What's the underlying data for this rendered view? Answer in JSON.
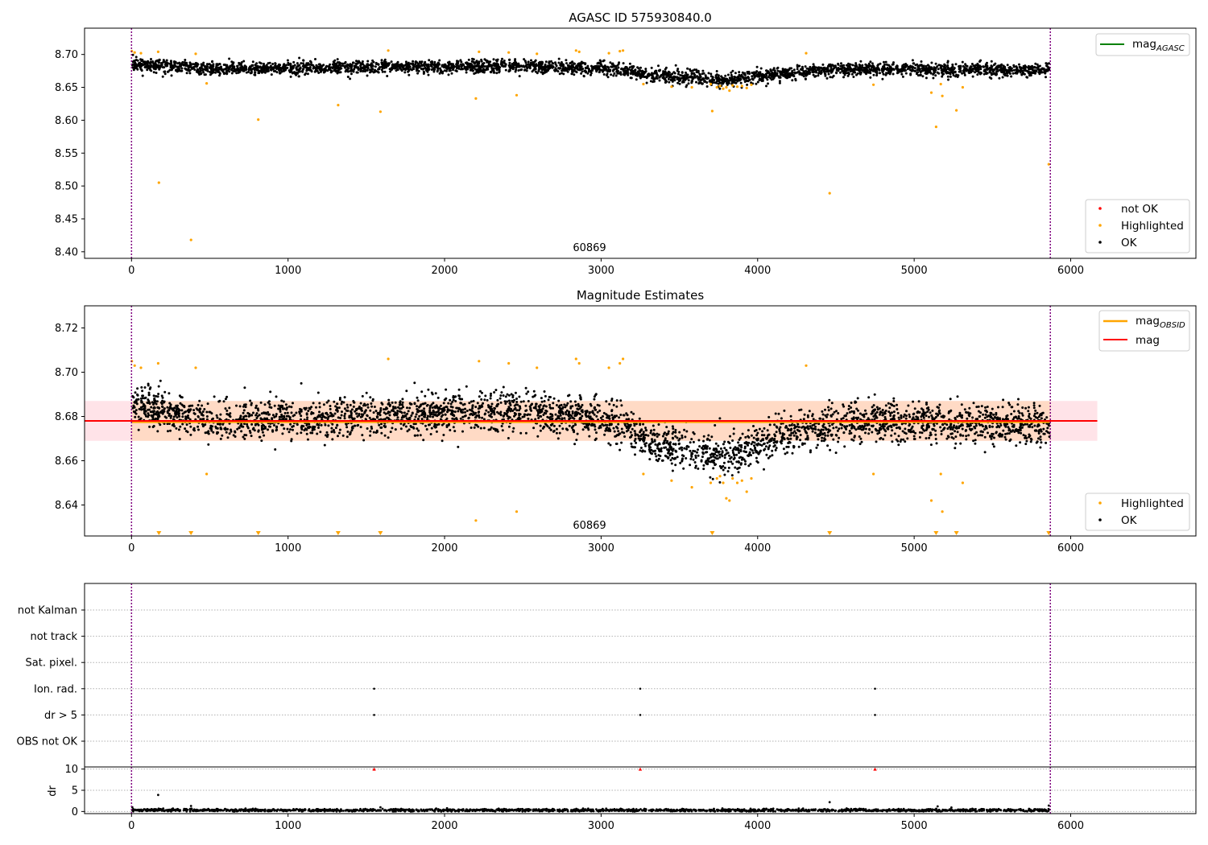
{
  "figure": {
    "panels": [
      {
        "id": "top",
        "title": "AGASC ID 575930840.0",
        "obs_label": "60869"
      },
      {
        "id": "middle",
        "title": "Magnitude Estimates",
        "obs_label": "60869"
      },
      {
        "id": "bottom",
        "title": ""
      }
    ],
    "legends": {
      "top_right": [
        {
          "label": "mag",
          "sub": "AGASC",
          "color": "#008000"
        }
      ],
      "top_markers": [
        {
          "label": "not OK",
          "color": "#ff0000"
        },
        {
          "label": "Highlighted",
          "color": "#ffa500"
        },
        {
          "label": "OK",
          "color": "#000000"
        }
      ],
      "middle_lines": [
        {
          "label": "mag",
          "sub": "OBSID",
          "color": "#ffa500"
        },
        {
          "label": "mag",
          "sub": "",
          "color": "#ff0000"
        }
      ],
      "middle_markers": [
        {
          "label": "Highlighted",
          "color": "#ffa500"
        },
        {
          "label": "OK",
          "color": "#000000"
        }
      ]
    }
  },
  "chart_data": [
    {
      "type": "scatter",
      "title": "AGASC ID 575930840.0",
      "xlabel": "",
      "ylabel": "",
      "xlim": [
        -300,
        6800
      ],
      "ylim": [
        8.39,
        8.74
      ],
      "xticks": [
        0,
        1000,
        2000,
        3000,
        4000,
        5000,
        6000
      ],
      "yticks": [
        8.4,
        8.45,
        8.5,
        8.55,
        8.6,
        8.65,
        8.7
      ],
      "ytick_labels": [
        "8.40",
        "8.45",
        "8.50",
        "8.55",
        "8.60",
        "8.65",
        "8.70"
      ],
      "vlines": [
        0,
        5870
      ],
      "annotation": "60869",
      "legend": [
        "mag_AGASC",
        "not OK",
        "Highlighted",
        "OK"
      ],
      "series": [
        {
          "name": "OK",
          "color": "#000000",
          "trend": [
            [
              0,
              8.686
            ],
            [
              500,
              8.678
            ],
            [
              1500,
              8.68
            ],
            [
              2500,
              8.682
            ],
            [
              3100,
              8.678
            ],
            [
              3300,
              8.668
            ],
            [
              3800,
              8.662
            ],
            [
              4200,
              8.672
            ],
            [
              4600,
              8.678
            ],
            [
              5870,
              8.676
            ]
          ],
          "spread": 0.009
        },
        {
          "name": "Highlighted",
          "color": "#ffa500",
          "points": [
            [
              2,
              8.705
            ],
            [
              20,
              8.703
            ],
            [
              60,
              8.702
            ],
            [
              170,
              8.704
            ],
            [
              175,
              8.505
            ],
            [
              380,
              8.418
            ],
            [
              410,
              8.701
            ],
            [
              480,
              8.656
            ],
            [
              810,
              8.601
            ],
            [
              1320,
              8.623
            ],
            [
              1590,
              8.613
            ],
            [
              1640,
              8.706
            ],
            [
              2200,
              8.633
            ],
            [
              2220,
              8.704
            ],
            [
              2410,
              8.703
            ],
            [
              2460,
              8.638
            ],
            [
              2590,
              8.701
            ],
            [
              2840,
              8.706
            ],
            [
              2860,
              8.704
            ],
            [
              3050,
              8.702
            ],
            [
              3120,
              8.705
            ],
            [
              3140,
              8.706
            ],
            [
              3270,
              8.655
            ],
            [
              3450,
              8.651
            ],
            [
              3580,
              8.65
            ],
            [
              3700,
              8.655
            ],
            [
              3710,
              8.614
            ],
            [
              3740,
              8.65
            ],
            [
              3760,
              8.652
            ],
            [
              3780,
              8.648
            ],
            [
              3800,
              8.65
            ],
            [
              3820,
              8.645
            ],
            [
              3840,
              8.653
            ],
            [
              3870,
              8.651
            ],
            [
              3900,
              8.652
            ],
            [
              3930,
              8.649
            ],
            [
              3960,
              8.654
            ],
            [
              4310,
              8.702
            ],
            [
              4460,
              8.489
            ],
            [
              4740,
              8.654
            ],
            [
              5110,
              8.642
            ],
            [
              5140,
              8.59
            ],
            [
              5170,
              8.655
            ],
            [
              5180,
              8.637
            ],
            [
              5270,
              8.615
            ],
            [
              5310,
              8.65
            ],
            [
              5860,
              8.533
            ]
          ]
        }
      ]
    },
    {
      "type": "scatter",
      "title": "Magnitude Estimates",
      "xlabel": "",
      "ylabel": "",
      "xlim": [
        -300,
        6800
      ],
      "ylim": [
        8.626,
        8.73
      ],
      "xticks": [
        0,
        1000,
        2000,
        3000,
        4000,
        5000,
        6000
      ],
      "yticks": [
        8.64,
        8.66,
        8.68,
        8.7,
        8.72
      ],
      "ytick_labels": [
        "8.64",
        "8.66",
        "8.68",
        "8.70",
        "8.72"
      ],
      "vlines": [
        0,
        5870
      ],
      "annotation": "60869",
      "legend": [
        "mag_OBSID",
        "mag",
        "Highlighted",
        "OK"
      ],
      "mag_line": {
        "y": 8.678,
        "x": [
          -300,
          6170
        ],
        "color": "#ff0000"
      },
      "mag_band": {
        "y": [
          8.669,
          8.687
        ],
        "x": [
          -300,
          6170
        ],
        "color": "#ffc0cb"
      },
      "obsid_line": {
        "y": 8.6775,
        "x": [
          0,
          5870
        ],
        "color": "#ffa500"
      },
      "obsid_band": {
        "y": [
          8.669,
          8.687
        ],
        "x": [
          0,
          5870
        ],
        "color": "#ffa500"
      },
      "series": [
        {
          "name": "OK",
          "color": "#000000",
          "trend": [
            [
              0,
              8.686
            ],
            [
              500,
              8.678
            ],
            [
              1500,
              8.68
            ],
            [
              2500,
              8.682
            ],
            [
              3100,
              8.678
            ],
            [
              3300,
              8.668
            ],
            [
              3800,
              8.662
            ],
            [
              4200,
              8.672
            ],
            [
              4600,
              8.678
            ],
            [
              5870,
              8.676
            ]
          ],
          "spread": 0.008
        },
        {
          "name": "Highlighted",
          "color": "#ffa500",
          "points": [
            [
              2,
              8.705
            ],
            [
              20,
              8.703
            ],
            [
              60,
              8.702
            ],
            [
              170,
              8.704
            ],
            [
              410,
              8.702
            ],
            [
              480,
              8.654
            ],
            [
              1640,
              8.706
            ],
            [
              2200,
              8.633
            ],
            [
              2220,
              8.705
            ],
            [
              2410,
              8.704
            ],
            [
              2460,
              8.637
            ],
            [
              2590,
              8.702
            ],
            [
              2840,
              8.706
            ],
            [
              2860,
              8.704
            ],
            [
              3050,
              8.702
            ],
            [
              3120,
              8.704
            ],
            [
              3140,
              8.706
            ],
            [
              3270,
              8.654
            ],
            [
              3450,
              8.651
            ],
            [
              3580,
              8.648
            ],
            [
              3700,
              8.65
            ],
            [
              3740,
              8.652
            ],
            [
              3760,
              8.653
            ],
            [
              3780,
              8.65
            ],
            [
              3800,
              8.643
            ],
            [
              3820,
              8.642
            ],
            [
              3840,
              8.652
            ],
            [
              3870,
              8.65
            ],
            [
              3900,
              8.651
            ],
            [
              3930,
              8.646
            ],
            [
              3960,
              8.652
            ],
            [
              4310,
              8.703
            ],
            [
              4740,
              8.654
            ],
            [
              5110,
              8.642
            ],
            [
              5180,
              8.637
            ],
            [
              5310,
              8.65
            ],
            [
              5170,
              8.654
            ]
          ]
        },
        {
          "name": "Highlighted (off-scale)",
          "color": "#ffa500",
          "marker": "triangle-down",
          "x": [
            175,
            380,
            810,
            1320,
            1590,
            3710,
            4460,
            5140,
            5270,
            5860
          ]
        }
      ]
    },
    {
      "type": "scatter",
      "title": "",
      "xlabel": "",
      "ylabel": "",
      "xlim": [
        -300,
        6800
      ],
      "categories": [
        "OBS not OK",
        "dr > 5",
        "Ion. rad.",
        "Sat. pixel.",
        "not track",
        "not Kalman"
      ],
      "vlines": [
        0,
        5870
      ],
      "flags": [
        {
          "category": "dr > 5",
          "x": [
            1550,
            3250,
            4750
          ]
        },
        {
          "category": "Ion. rad.",
          "x": [
            1550,
            3250,
            4750
          ]
        }
      ]
    },
    {
      "type": "scatter",
      "title": "",
      "xlabel": "",
      "ylabel": "dr",
      "xlim": [
        -300,
        6800
      ],
      "ylim": [
        -0.5,
        10.5
      ],
      "xticks": [
        0,
        1000,
        2000,
        3000,
        4000,
        5000,
        6000
      ],
      "yticks": [
        0,
        5,
        10
      ],
      "ytick_labels": [
        "0",
        "5",
        "10"
      ],
      "vlines": [
        0,
        5870
      ],
      "series": [
        {
          "name": "OK",
          "color": "#000000",
          "trend": [
            [
              0,
              0.3
            ],
            [
              5870,
              0.3
            ]
          ],
          "spread": 0.25,
          "points": [
            [
              5,
              1.0
            ],
            [
              170,
              3.9
            ],
            [
              380,
              1.3
            ],
            [
              1590,
              1.0
            ],
            [
              4460,
              2.2
            ],
            [
              5150,
              1.2
            ],
            [
              5860,
              1.4
            ]
          ]
        },
        {
          "name": "not OK",
          "color": "#ff0000",
          "marker": "triangle-up",
          "points": [
            [
              1550,
              10
            ],
            [
              3250,
              10
            ],
            [
              4750,
              10
            ]
          ]
        }
      ]
    }
  ]
}
